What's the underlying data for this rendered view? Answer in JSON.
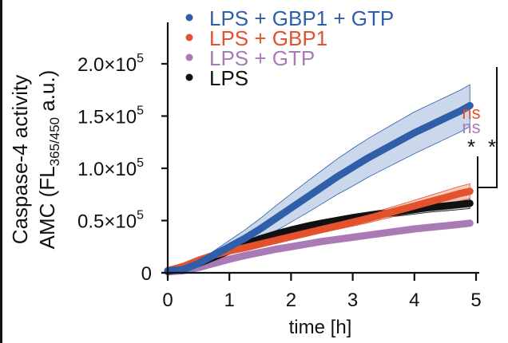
{
  "chart_data": {
    "type": "line",
    "title": "",
    "xlabel": "time [h]",
    "ylabel_line1": "Caspase-4 activity",
    "ylabel_line2_prefix": "AMC (FL",
    "ylabel_line2_sub": "365/450",
    "ylabel_line2_suffix": " a.u.)",
    "xlim": [
      0,
      5.5
    ],
    "ylim": [
      0,
      200000
    ],
    "x_ticks": [
      0,
      1,
      2,
      3,
      4,
      5
    ],
    "x_tick_labels": [
      "0",
      "1",
      "2",
      "3",
      "4",
      "5"
    ],
    "y_ticks": [
      0,
      50000,
      100000,
      150000,
      200000
    ],
    "y_tick_labels": [
      {
        "mantissa": "0",
        "exp": ""
      },
      {
        "mantissa": "0.5×10",
        "exp": "5"
      },
      {
        "mantissa": "1.0×10",
        "exp": "5"
      },
      {
        "mantissa": "1.5×10",
        "exp": "5"
      },
      {
        "mantissa": "2.0×10",
        "exp": "5"
      }
    ],
    "legend_position": "top-left",
    "grid": false,
    "x": [
      0,
      0.25,
      0.5,
      0.75,
      1.0,
      1.25,
      1.5,
      1.75,
      2.0,
      2.25,
      2.5,
      2.75,
      3.0,
      3.25,
      3.5,
      3.75,
      4.0,
      4.25,
      4.5,
      4.75,
      4.9
    ],
    "series": [
      {
        "name": "LPS + GBP1 + GTP",
        "color": "#2e5fa8",
        "band_color": "#c5d4ea",
        "values": [
          2000,
          3000,
          9000,
          17000,
          25000,
          33000,
          42000,
          52000,
          62000,
          72000,
          82000,
          92000,
          101000,
          110000,
          118000,
          126000,
          134000,
          141000,
          148000,
          155000,
          160000
        ],
        "sd": [
          1000,
          1500,
          2500,
          4000,
          6000,
          8000,
          10000,
          12000,
          13500,
          15000,
          16000,
          17000,
          18000,
          18500,
          19000,
          19500,
          20000,
          20000,
          20000,
          20000,
          20000
        ]
      },
      {
        "name": "LPS + GBP1",
        "color": "#e4512d",
        "band_color": "#f7c6b8",
        "values": [
          2000,
          6000,
          12000,
          17000,
          21000,
          24000,
          27500,
          31000,
          34500,
          38000,
          41500,
          45000,
          48500,
          52000,
          56000,
          60000,
          64000,
          68000,
          72000,
          76000,
          78000
        ],
        "sd": [
          500,
          800,
          1000,
          1200,
          1500,
          1800,
          2000,
          2300,
          2600,
          2900,
          3200,
          3500,
          3800,
          4200,
          4600,
          5000,
          5500,
          6000,
          6500,
          7000,
          7200
        ]
      },
      {
        "name": "LPS + GTP",
        "color": "#a97ab5",
        "band_color": "#dcc7e3",
        "values": [
          1000,
          2000,
          5000,
          9000,
          13000,
          16500,
          19500,
          22500,
          25000,
          27500,
          30000,
          32000,
          34000,
          36000,
          38000,
          40000,
          42000,
          43500,
          45000,
          46500,
          47500
        ],
        "sd": [
          300,
          400,
          500,
          600,
          700,
          800,
          800,
          900,
          900,
          1000,
          1000,
          1000,
          1000,
          1100,
          1100,
          1100,
          1200,
          1200,
          1200,
          1200,
          1200
        ]
      },
      {
        "name": "LPS",
        "color": "#111111",
        "band_color": "#bdbdbd",
        "values": [
          1500,
          4000,
          9000,
          15000,
          21000,
          27000,
          32500,
          37000,
          41000,
          44500,
          47500,
          50000,
          52500,
          54500,
          56500,
          58500,
          60500,
          62500,
          64000,
          65500,
          66500
        ],
        "sd": [
          500,
          700,
          900,
          1100,
          1400,
          1700,
          2000,
          2300,
          2600,
          2900,
          3100,
          3300,
          3500,
          3700,
          3900,
          4100,
          4300,
          4500,
          4700,
          4900,
          5000
        ]
      }
    ],
    "annotations": [
      {
        "text": "ns",
        "color": "#e4512d",
        "meaning": "LPS + GBP1 vs LPS"
      },
      {
        "text": "ns",
        "color": "#a97ab5",
        "meaning": "LPS + GTP vs LPS"
      },
      {
        "text": "*",
        "color": "#111111",
        "meaning": "bracket: LPS + GTP / LPS + GBP1 group"
      },
      {
        "text": "*",
        "color": "#111111",
        "meaning": "bracket: LPS + GBP1 + GTP vs LPS"
      }
    ]
  }
}
